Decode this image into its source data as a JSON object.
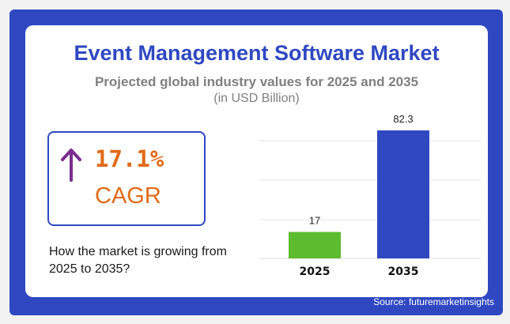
{
  "title": "Event Management Software Market",
  "subtitle": "Projected global industry values for 2025 and 2035",
  "unit": "(in USD Billion)",
  "cagr": {
    "value": "17.1%",
    "label": "CAGR",
    "icon": "arrow-up-icon",
    "arrow_color": "#7b2b8f",
    "text_color": "#e06b17"
  },
  "growth_text": "How the market is growing from 2025 to 2035?",
  "source": "Source: futuremarketinsights",
  "colors": {
    "frame": "#2f48c2",
    "title": "#2f48c2"
  },
  "chart_data": {
    "type": "bar",
    "categories": [
      "2025",
      "2035"
    ],
    "values": [
      17,
      82.3
    ],
    "colors": [
      "#5dbb2f",
      "#2f48c2"
    ],
    "data_labels": [
      "17",
      "82.3"
    ],
    "ylim": [
      0,
      82.3
    ],
    "grid": true
  }
}
